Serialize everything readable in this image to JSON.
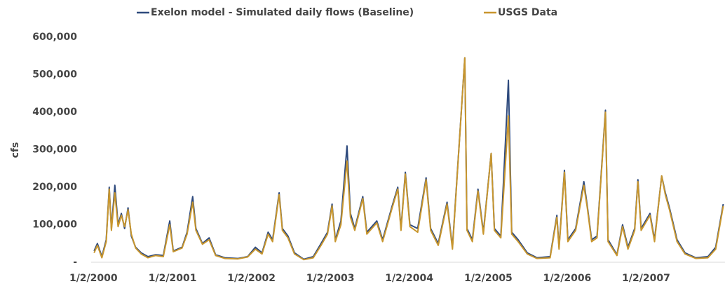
{
  "chart_data": {
    "type": "line",
    "ylabel": "cfs",
    "x": [
      "2000-01-05",
      "2000-01-20",
      "2000-02-10",
      "2000-03-01",
      "2000-03-15",
      "2000-03-25",
      "2000-04-10",
      "2000-04-25",
      "2000-05-10",
      "2000-05-25",
      "2000-06-10",
      "2000-06-25",
      "2000-07-15",
      "2000-08-10",
      "2000-09-10",
      "2000-10-15",
      "2000-11-20",
      "2000-12-20",
      "2001-01-05",
      "2001-02-15",
      "2001-03-10",
      "2001-04-05",
      "2001-04-20",
      "2001-05-20",
      "2001-06-20",
      "2001-07-20",
      "2001-09-01",
      "2001-11-01",
      "2001-12-15",
      "2002-01-20",
      "2002-02-20",
      "2002-03-20",
      "2002-04-10",
      "2002-05-10",
      "2002-05-25",
      "2002-06-20",
      "2002-07-20",
      "2002-09-01",
      "2002-10-15",
      "2002-11-20",
      "2002-12-20",
      "2003-01-10",
      "2003-01-25",
      "2003-02-20",
      "2003-03-20",
      "2003-04-05",
      "2003-04-25",
      "2003-06-01",
      "2003-06-20",
      "2003-08-05",
      "2003-09-01",
      "2003-10-15",
      "2003-11-10",
      "2003-11-25",
      "2003-12-15",
      "2004-01-05",
      "2004-02-10",
      "2004-03-20",
      "2004-04-10",
      "2004-05-15",
      "2004-06-25",
      "2004-07-20",
      "2004-09-15",
      "2004-09-25",
      "2004-10-20",
      "2004-11-15",
      "2004-12-10",
      "2005-01-15",
      "2005-01-30",
      "2005-03-01",
      "2005-04-05",
      "2005-04-20",
      "2005-05-20",
      "2005-07-01",
      "2005-08-15",
      "2005-10-15",
      "2005-11-15",
      "2005-11-25",
      "2005-12-20",
      "2006-01-05",
      "2006-02-10",
      "2006-03-20",
      "2006-04-05",
      "2006-04-25",
      "2006-05-20",
      "2006-06-28",
      "2006-07-10",
      "2006-08-20",
      "2006-09-15",
      "2006-10-10",
      "2006-11-10",
      "2006-11-25",
      "2006-12-10",
      "2007-01-20",
      "2007-02-10",
      "2007-03-15",
      "2007-04-01",
      "2007-04-20",
      "2007-05-25",
      "2007-07-01",
      "2007-08-20",
      "2007-10-15",
      "2007-11-20",
      "2007-12-25"
    ],
    "series": [
      {
        "name": "Exelon model - Simulated daily flows (Baseline)",
        "color": "#2e4a7d",
        "values": [
          30000,
          50000,
          15000,
          60000,
          200000,
          90000,
          205000,
          100000,
          130000,
          90000,
          145000,
          70000,
          40000,
          25000,
          15000,
          20000,
          18000,
          110000,
          30000,
          40000,
          80000,
          175000,
          90000,
          50000,
          65000,
          20000,
          12000,
          10000,
          15000,
          40000,
          25000,
          80000,
          60000,
          185000,
          90000,
          70000,
          25000,
          8000,
          15000,
          50000,
          80000,
          155000,
          60000,
          110000,
          310000,
          130000,
          90000,
          175000,
          80000,
          110000,
          60000,
          150000,
          200000,
          90000,
          240000,
          100000,
          90000,
          225000,
          90000,
          50000,
          160000,
          40000,
          545000,
          90000,
          60000,
          195000,
          80000,
          290000,
          90000,
          70000,
          485000,
          80000,
          60000,
          25000,
          12000,
          15000,
          125000,
          40000,
          245000,
          60000,
          90000,
          215000,
          150000,
          60000,
          70000,
          405000,
          60000,
          20000,
          100000,
          40000,
          90000,
          220000,
          90000,
          130000,
          60000,
          230000,
          185000,
          145000,
          60000,
          25000,
          12000,
          15000,
          40000,
          155000
        ]
      },
      {
        "name": "USGS Data",
        "color": "#c8962e",
        "values": [
          25000,
          45000,
          12000,
          55000,
          195000,
          85000,
          185000,
          95000,
          125000,
          95000,
          140000,
          75000,
          38000,
          22000,
          12000,
          18000,
          15000,
          100000,
          28000,
          38000,
          75000,
          160000,
          85000,
          48000,
          60000,
          18000,
          10000,
          9000,
          14000,
          35000,
          22000,
          75000,
          55000,
          180000,
          85000,
          65000,
          22000,
          7000,
          12000,
          45000,
          75000,
          150000,
          55000,
          100000,
          270000,
          120000,
          85000,
          170000,
          75000,
          105000,
          55000,
          145000,
          195000,
          85000,
          235000,
          95000,
          80000,
          220000,
          85000,
          45000,
          155000,
          35000,
          545000,
          85000,
          55000,
          190000,
          75000,
          290000,
          85000,
          65000,
          390000,
          75000,
          55000,
          22000,
          10000,
          12000,
          120000,
          35000,
          240000,
          55000,
          85000,
          205000,
          145000,
          55000,
          65000,
          400000,
          55000,
          18000,
          95000,
          35000,
          85000,
          215000,
          85000,
          125000,
          55000,
          230000,
          180000,
          140000,
          55000,
          22000,
          10000,
          12000,
          35000,
          150000
        ]
      }
    ],
    "xlim": [
      "2000-01-01",
      "2008-01-02"
    ],
    "xticks": [
      {
        "value": "2000-01-02",
        "label": "1/2/2000"
      },
      {
        "value": "2001-01-02",
        "label": "1/2/2001"
      },
      {
        "value": "2002-01-02",
        "label": "1/2/2002"
      },
      {
        "value": "2003-01-02",
        "label": "1/2/2003"
      },
      {
        "value": "2004-01-02",
        "label": "1/2/2004"
      },
      {
        "value": "2005-01-02",
        "label": "1/2/2005"
      },
      {
        "value": "2006-01-02",
        "label": "1/2/2006"
      },
      {
        "value": "2007-01-02",
        "label": "1/2/2007"
      }
    ],
    "ylim": [
      0,
      600000
    ],
    "yticks": [
      {
        "value": 0,
        "label": "-"
      },
      {
        "value": 100000,
        "label": "100,000"
      },
      {
        "value": 200000,
        "label": "200,000"
      },
      {
        "value": 300000,
        "label": "300,000"
      },
      {
        "value": 400000,
        "label": "400,000"
      },
      {
        "value": 500000,
        "label": "500,000"
      },
      {
        "value": 600000,
        "label": "600,000"
      }
    ],
    "grid": false,
    "legend": "top"
  }
}
